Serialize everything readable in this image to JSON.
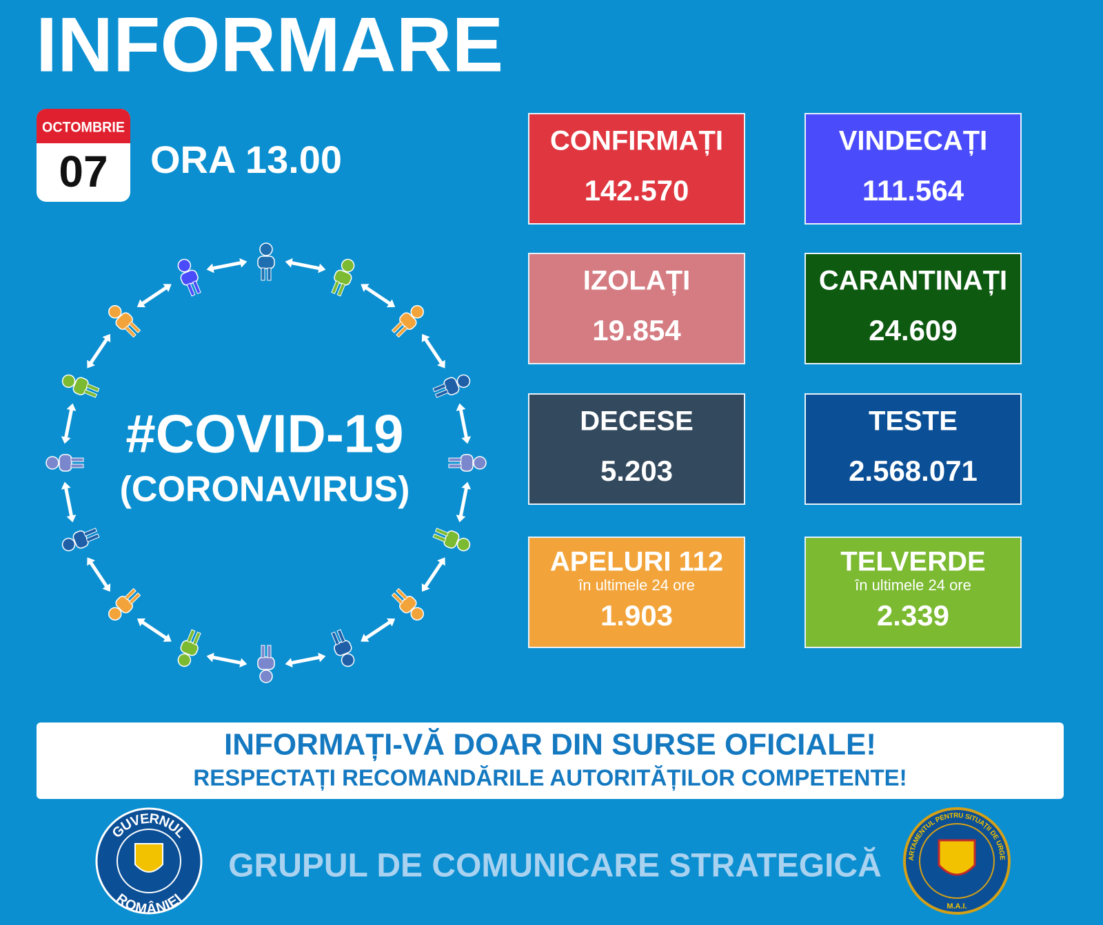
{
  "header": {
    "title": "INFORMARE"
  },
  "date": {
    "month": "OCTOMBRIE",
    "day": "07",
    "time": "ORA 13.00"
  },
  "stats": [
    {
      "label": "CONFIRMAȚI",
      "value": "142.570",
      "color": "#e0363f"
    },
    {
      "label": "VINDECAȚI",
      "value": "111.564",
      "color": "#4a4cfb"
    },
    {
      "label": "IZOLAȚI",
      "value": "19.854",
      "color": "#d47c82"
    },
    {
      "label": "CARANTINAȚI",
      "value": "24.609",
      "color": "#0d5a10"
    },
    {
      "label": "DECESE",
      "value": "5.203",
      "color": "#33495e"
    },
    {
      "label": "TESTE",
      "value": "2.568.071",
      "color": "#0b4f96"
    },
    {
      "label": "APELURI 112",
      "sublabel": "în ultimele 24 ore",
      "value": "1.903",
      "color": "#f2a43a"
    },
    {
      "label": "TELVERDE",
      "sublabel": "în ultimele 24 ore",
      "value": "2.339",
      "color": "#7bba31"
    }
  ],
  "center": {
    "hashtag": "#COVID-19",
    "subtitle": "(CORONAVIRUS)"
  },
  "banner": {
    "line1": "INFORMAȚI-VĂ DOAR DIN SURSE OFICIALE!",
    "line2": "RESPECTAȚI RECOMANDĂRILE AUTORITĂȚILOR COMPETENTE!"
  },
  "footer": {
    "text": "GRUPUL DE COMUNICARE STRATEGICĂ",
    "logo_left": {
      "top": "GUVERNUL",
      "bottom": "ROMÂNIEI"
    },
    "logo_right": {
      "top": "DEPARTAMENTUL PENTRU SITUAȚII DE URGENȚĂ",
      "bottom": "M.A.I."
    }
  }
}
